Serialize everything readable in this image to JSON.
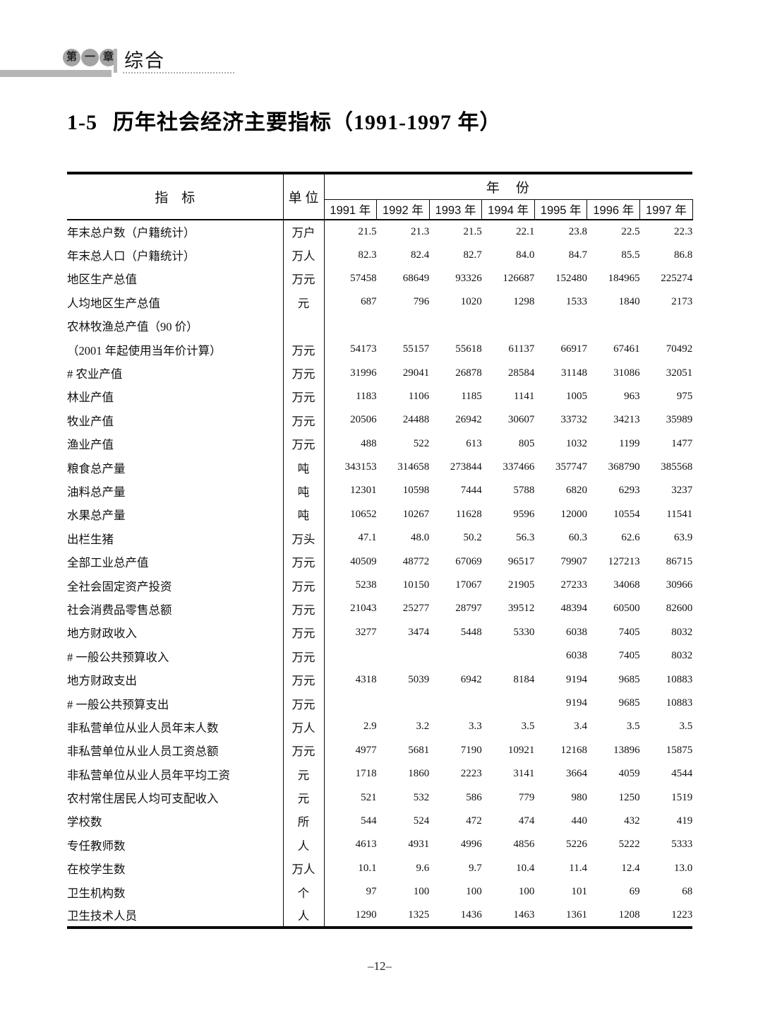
{
  "page_header": {
    "chapter_badge": [
      "第",
      "一",
      "章"
    ],
    "section_label": "综合"
  },
  "title": {
    "number": "1-5",
    "text": "历年社会经济主要指标（1991-1997 年）"
  },
  "colors": {
    "header_grey": "#b5b5b5",
    "badge_grey": "#a3a3a3",
    "border_black": "#0a0a0a",
    "text": "#111111"
  },
  "table": {
    "indicator_header": "指　标",
    "unit_header": "单 位",
    "year_group_header": "年　份",
    "year_headers": [
      "1991 年",
      "1992 年",
      "1993 年",
      "1994 年",
      "1995 年",
      "1996 年",
      "1997 年"
    ],
    "rows": [
      {
        "label": "年末总户数（户籍统计）",
        "unit": "万户",
        "indent": 0,
        "values": [
          "21.5",
          "21.3",
          "21.5",
          "22.1",
          "23.8",
          "22.5",
          "22.3"
        ]
      },
      {
        "label": "年末总人口（户籍统计）",
        "unit": "万人",
        "indent": 0,
        "values": [
          "82.3",
          "82.4",
          "82.7",
          "84.0",
          "84.7",
          "85.5",
          "86.8"
        ]
      },
      {
        "label": "地区生产总值",
        "unit": "万元",
        "indent": 0,
        "values": [
          "57458",
          "68649",
          "93326",
          "126687",
          "152480",
          "184965",
          "225274"
        ]
      },
      {
        "label": "人均地区生产总值",
        "unit": "元",
        "indent": 0,
        "values": [
          "687",
          "796",
          "1020",
          "1298",
          "1533",
          "1840",
          "2173"
        ]
      },
      {
        "label": "农林牧渔总产值（90 价）",
        "unit": "",
        "indent": 0,
        "values": [
          "",
          "",
          "",
          "",
          "",
          "",
          ""
        ]
      },
      {
        "label": "（2001 年起使用当年价计算）",
        "unit": "万元",
        "indent": 1,
        "values": [
          "54173",
          "55157",
          "55618",
          "61137",
          "66917",
          "67461",
          "70492"
        ]
      },
      {
        "label": "# 农业产值",
        "unit": "万元",
        "indent": 2,
        "values": [
          "31996",
          "29041",
          "26878",
          "28584",
          "31148",
          "31086",
          "32051"
        ]
      },
      {
        "label": "林业产值",
        "unit": "万元",
        "indent": 3,
        "values": [
          "1183",
          "1106",
          "1185",
          "1141",
          "1005",
          "963",
          "975"
        ]
      },
      {
        "label": "牧业产值",
        "unit": "万元",
        "indent": 3,
        "values": [
          "20506",
          "24488",
          "26942",
          "30607",
          "33732",
          "34213",
          "35989"
        ]
      },
      {
        "label": "渔业产值",
        "unit": "万元",
        "indent": 3,
        "values": [
          "488",
          "522",
          "613",
          "805",
          "1032",
          "1199",
          "1477"
        ]
      },
      {
        "label": "粮食总产量",
        "unit": "吨",
        "indent": 0,
        "values": [
          "343153",
          "314658",
          "273844",
          "337466",
          "357747",
          "368790",
          "385568"
        ]
      },
      {
        "label": "油料总产量",
        "unit": "吨",
        "indent": 0,
        "values": [
          "12301",
          "10598",
          "7444",
          "5788",
          "6820",
          "6293",
          "3237"
        ]
      },
      {
        "label": "水果总产量",
        "unit": "吨",
        "indent": 0,
        "values": [
          "10652",
          "10267",
          "11628",
          "9596",
          "12000",
          "10554",
          "11541"
        ]
      },
      {
        "label": "出栏生猪",
        "unit": "万头",
        "indent": 0,
        "values": [
          "47.1",
          "48.0",
          "50.2",
          "56.3",
          "60.3",
          "62.6",
          "63.9"
        ]
      },
      {
        "label": "全部工业总产值",
        "unit": "万元",
        "indent": 0,
        "values": [
          "40509",
          "48772",
          "67069",
          "96517",
          "79907",
          "127213",
          "86715"
        ]
      },
      {
        "label": "全社会固定资产投资",
        "unit": "万元",
        "indent": 0,
        "values": [
          "5238",
          "10150",
          "17067",
          "21905",
          "27233",
          "34068",
          "30966"
        ]
      },
      {
        "label": "社会消费品零售总额",
        "unit": "万元",
        "indent": 0,
        "values": [
          "21043",
          "25277",
          "28797",
          "39512",
          "48394",
          "60500",
          "82600"
        ]
      },
      {
        "label": "地方财政收入",
        "unit": "万元",
        "indent": 0,
        "values": [
          "3277",
          "3474",
          "5448",
          "5330",
          "6038",
          "7405",
          "8032"
        ]
      },
      {
        "label": "# 一般公共预算收入",
        "unit": "万元",
        "indent": 2,
        "values": [
          "",
          "",
          "",
          "",
          "6038",
          "7405",
          "8032"
        ]
      },
      {
        "label": "地方财政支出",
        "unit": "万元",
        "indent": 0,
        "values": [
          "4318",
          "5039",
          "6942",
          "8184",
          "9194",
          "9685",
          "10883"
        ]
      },
      {
        "label": "# 一般公共预算支出",
        "unit": "万元",
        "indent": 2,
        "values": [
          "",
          "",
          "",
          "",
          "9194",
          "9685",
          "10883"
        ]
      },
      {
        "label": "非私营单位从业人员年末人数",
        "unit": "万人",
        "indent": 0,
        "values": [
          "2.9",
          "3.2",
          "3.3",
          "3.5",
          "3.4",
          "3.5",
          "3.5"
        ]
      },
      {
        "label": "非私营单位从业人员工资总额",
        "unit": "万元",
        "indent": 0,
        "values": [
          "4977",
          "5681",
          "7190",
          "10921",
          "12168",
          "13896",
          "15875"
        ]
      },
      {
        "label": "非私营单位从业人员年平均工资",
        "unit": "元",
        "indent": 0,
        "values": [
          "1718",
          "1860",
          "2223",
          "3141",
          "3664",
          "4059",
          "4544"
        ]
      },
      {
        "label": "农村常住居民人均可支配收入",
        "unit": "元",
        "indent": 0,
        "values": [
          "521",
          "532",
          "586",
          "779",
          "980",
          "1250",
          "1519"
        ]
      },
      {
        "label": "学校数",
        "unit": "所",
        "indent": 0,
        "values": [
          "544",
          "524",
          "472",
          "474",
          "440",
          "432",
          "419"
        ]
      },
      {
        "label": "专任教师数",
        "unit": "人",
        "indent": 0,
        "values": [
          "4613",
          "4931",
          "4996",
          "4856",
          "5226",
          "5222",
          "5333"
        ]
      },
      {
        "label": "在校学生数",
        "unit": "万人",
        "indent": 0,
        "values": [
          "10.1",
          "9.6",
          "9.7",
          "10.4",
          "11.4",
          "12.4",
          "13.0"
        ]
      },
      {
        "label": "卫生机构数",
        "unit": "个",
        "indent": 0,
        "values": [
          "97",
          "100",
          "100",
          "100",
          "101",
          "69",
          "68"
        ]
      },
      {
        "label": "卫生技术人员",
        "unit": "人",
        "indent": 0,
        "values": [
          "1290",
          "1325",
          "1436",
          "1463",
          "1361",
          "1208",
          "1223"
        ]
      }
    ]
  },
  "footer": {
    "page_number": "–12–"
  }
}
